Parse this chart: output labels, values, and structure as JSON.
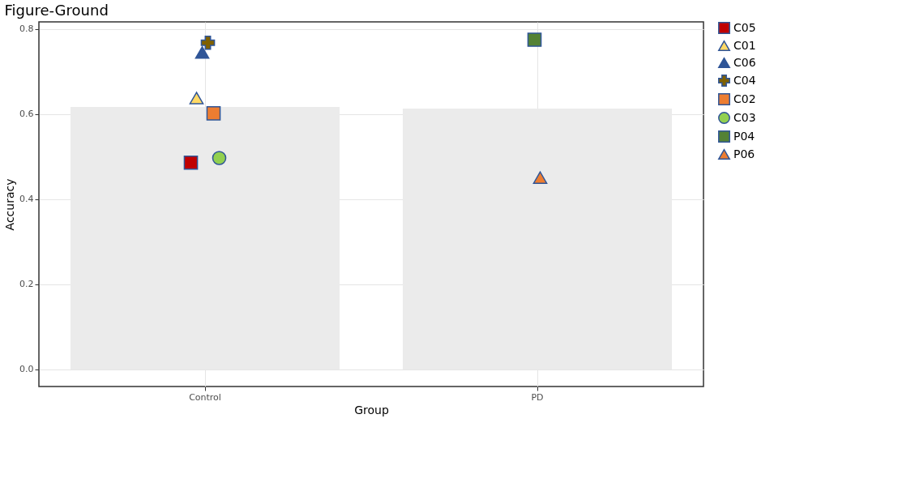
{
  "chart_data": {
    "type": "bar",
    "title": "Figure-Ground",
    "xlabel": "Group",
    "ylabel": "Accuracy",
    "categories": [
      "Control",
      "PD"
    ],
    "ylim": [
      -0.04,
      0.817
    ],
    "yticks": [
      {
        "value": 0,
        "label": "0.0"
      },
      {
        "value": 0.2,
        "label": "0.2"
      },
      {
        "value": 0.4,
        "label": "0.4"
      },
      {
        "value": 0.6,
        "label": "0.6"
      },
      {
        "value": 0.8,
        "label": "0.8"
      }
    ],
    "grid": true,
    "legend": "right",
    "series": [
      {
        "color": "#ebebeb",
        "values": [
          0.617,
          0.613
        ]
      },
      {
        "type": "scatter",
        "name": "C05",
        "color": "#c00000",
        "marker": "square",
        "x": [
          "Control"
        ],
        "values": [
          0.486
        ]
      },
      {
        "type": "scatter",
        "name": "C01",
        "color": "#ffd966",
        "marker": "triangle",
        "x": [
          "Control"
        ],
        "values": [
          0.638
        ]
      },
      {
        "type": "scatter",
        "name": "C06",
        "color": "#2f5597",
        "marker": "triangle",
        "x": [
          "Control"
        ],
        "values": [
          0.745
        ]
      },
      {
        "type": "scatter",
        "name": "C04",
        "color": "#7f6000",
        "marker": "cross",
        "x": [
          "Control"
        ],
        "values": [
          0.768
        ]
      },
      {
        "type": "scatter",
        "name": "C02",
        "color": "#ed7d31",
        "marker": "square",
        "x": [
          "Control"
        ],
        "values": [
          0.602
        ]
      },
      {
        "type": "scatter",
        "name": "C03",
        "color": "#92d050",
        "marker": "circle",
        "x": [
          "Control"
        ],
        "values": [
          0.497
        ]
      },
      {
        "type": "scatter",
        "name": "P04",
        "color": "#548235",
        "marker": "square",
        "x": [
          "PD"
        ],
        "values": [
          0.775
        ]
      },
      {
        "type": "scatter",
        "name": "P06",
        "color": "#ed7d31",
        "marker": "triangle",
        "x": [
          "PD"
        ],
        "values": [
          0.451
        ]
      }
    ]
  }
}
